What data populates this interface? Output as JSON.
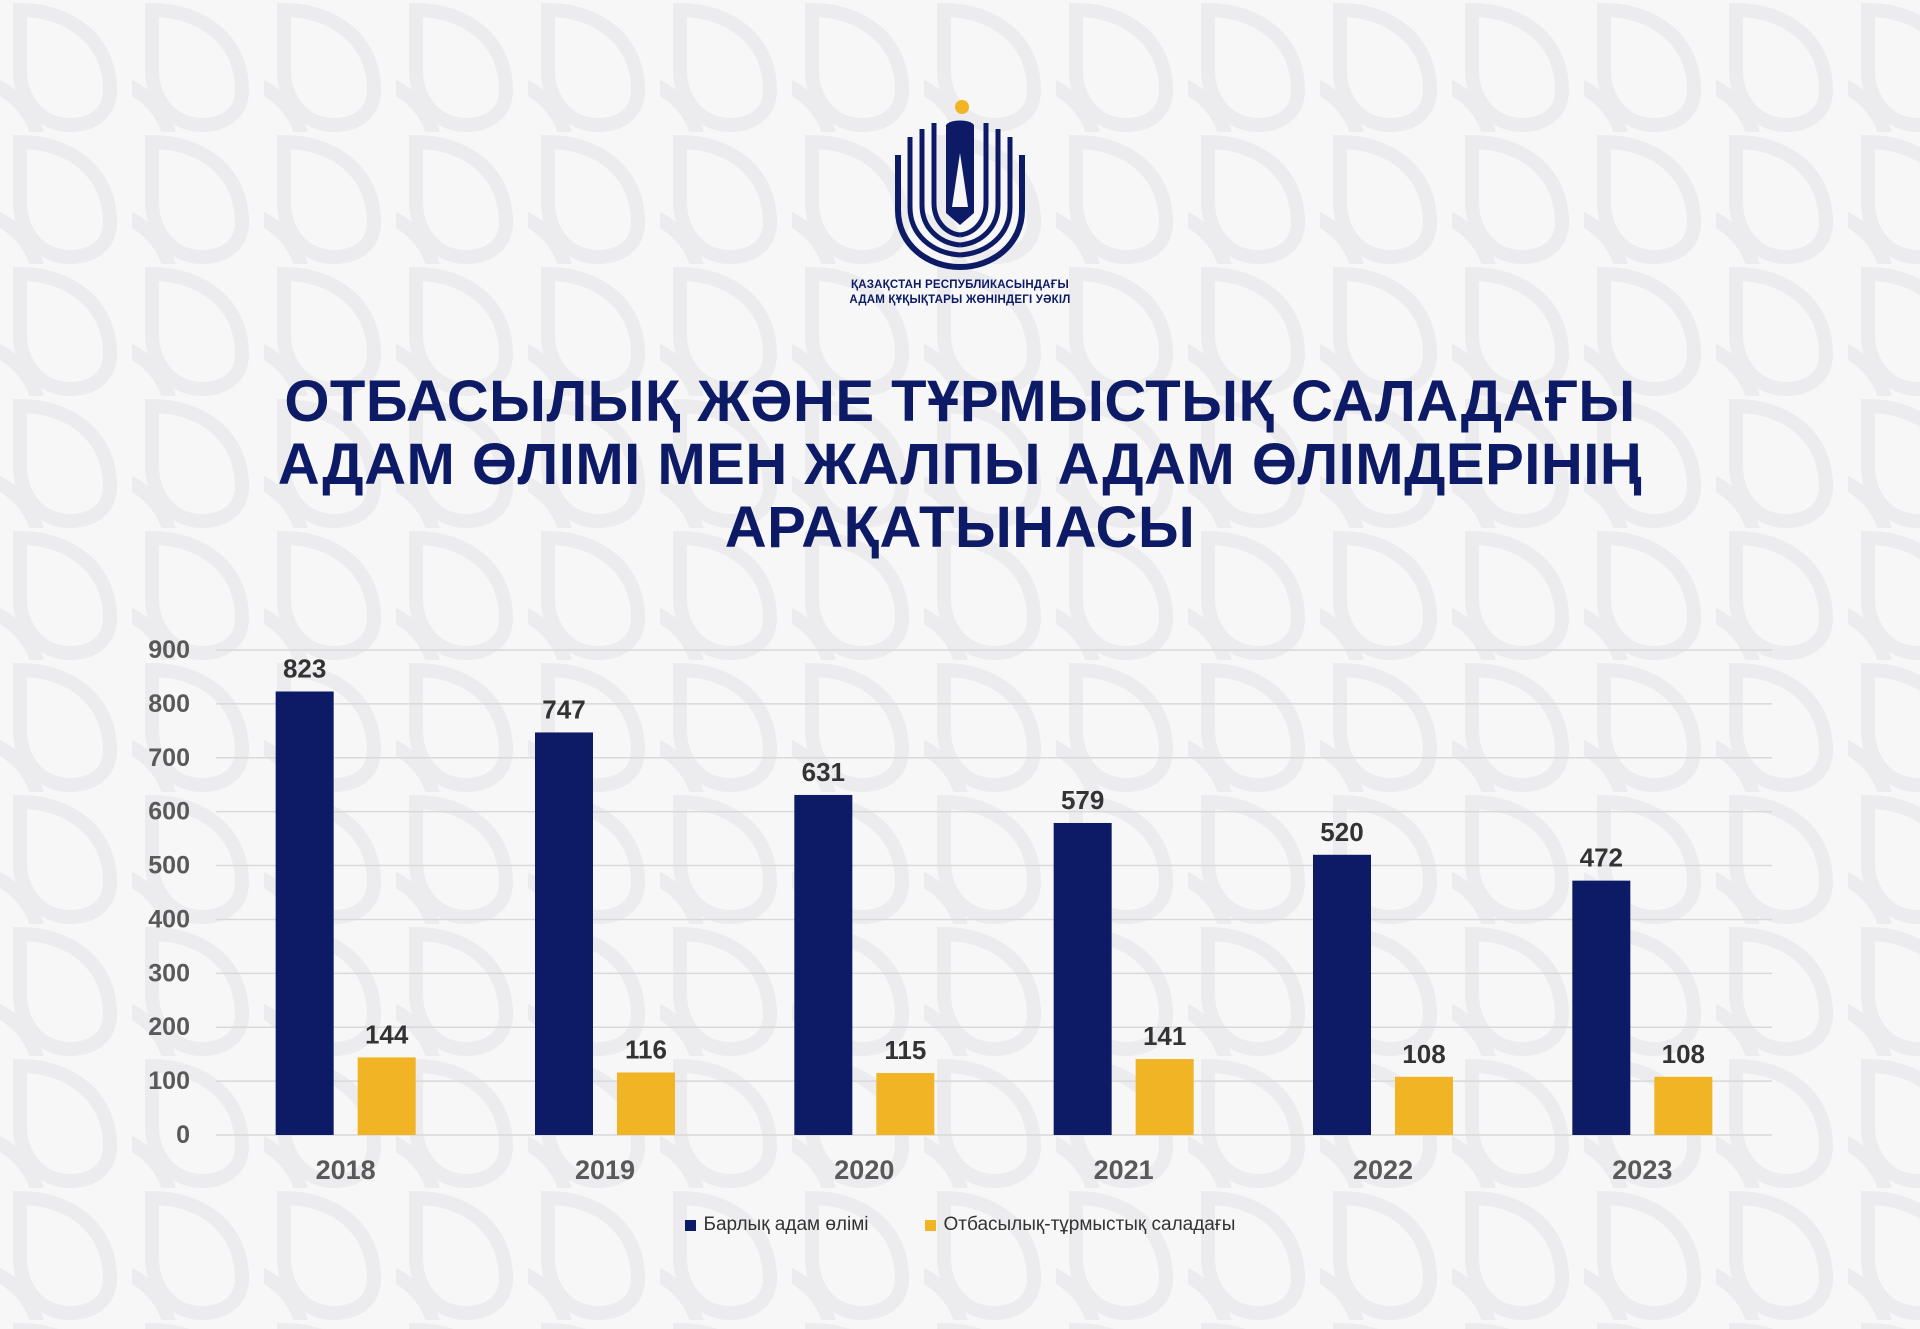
{
  "org": {
    "line1": "ҚАЗАҚСТАН РЕСПУБЛИКАСЫНДАҒЫ",
    "line2": "АДАМ ҚҰҚЫҚТАРЫ ЖӨНІНДЕГІ УӘКІЛ"
  },
  "title": {
    "line1": "ОТБАСЫЛЫҚ ЖӘНЕ ТҰРМЫСТЫҚ САЛАДАҒЫ",
    "line2": "АДАМ ӨЛІМІ МЕН ЖАЛПЫ АДАМ ӨЛІМДЕРІНІҢ",
    "line3": "АРАҚАТЫНАСЫ"
  },
  "colors": {
    "navy": "#0d1a66",
    "yellow": "#f0b425",
    "grid": "#d9d9d9",
    "tick_text": "#595959",
    "label_text": "#333333"
  },
  "chart_data": {
    "type": "bar",
    "categories": [
      "2018",
      "2019",
      "2020",
      "2021",
      "2022",
      "2023"
    ],
    "series": [
      {
        "name": "Барлық адам өлімі",
        "color": "#0d1a66",
        "values": [
          823,
          747,
          631,
          579,
          520,
          472
        ]
      },
      {
        "name": "Отбасылық-тұрмыстық саладағы",
        "color": "#f0b425",
        "values": [
          144,
          116,
          115,
          141,
          108,
          108
        ]
      }
    ],
    "y_ticks": [
      0,
      100,
      200,
      300,
      400,
      500,
      600,
      700,
      800,
      900
    ],
    "ylim": [
      0,
      900
    ],
    "grid": true,
    "legend_position": "bottom",
    "data_labels": true
  }
}
